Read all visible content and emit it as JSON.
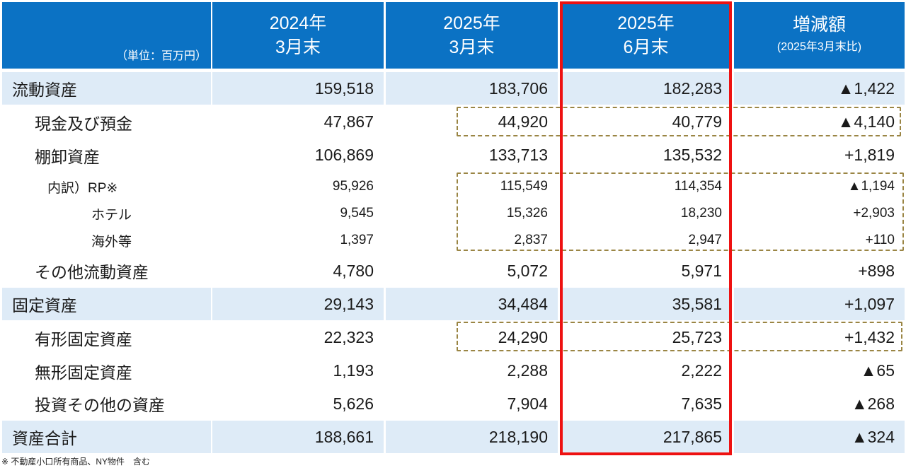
{
  "header": {
    "unit": "（単位：百万円）",
    "columns": [
      {
        "line1": "2024年",
        "line2": "3月末"
      },
      {
        "line1": "2025年",
        "line2": "3月末"
      },
      {
        "line1": "2025年",
        "line2": "6月末"
      }
    ],
    "change": {
      "line1": "増減額",
      "line2": "(2025年3月末比)"
    }
  },
  "rows": [
    {
      "label": "流動資産",
      "values": [
        "159,518",
        "183,706",
        "182,283",
        "▲1,422"
      ]
    },
    {
      "label": "現金及び預金",
      "values": [
        "47,867",
        "44,920",
        "40,779",
        "▲4,140"
      ]
    },
    {
      "label": "棚卸資産",
      "values": [
        "106,869",
        "133,713",
        "135,532",
        "+1,819"
      ]
    },
    {
      "label": "内訳）RP※",
      "values": [
        "95,926",
        "115,549",
        "114,354",
        "▲1,194"
      ]
    },
    {
      "label": "ホテル",
      "values": [
        "9,545",
        "15,326",
        "18,230",
        "+2,903"
      ]
    },
    {
      "label": "海外等",
      "values": [
        "1,397",
        "2,837",
        "2,947",
        "+110"
      ]
    },
    {
      "label": "その他流動資産",
      "values": [
        "4,780",
        "5,072",
        "5,971",
        "+898"
      ]
    },
    {
      "label": "固定資産",
      "values": [
        "29,143",
        "34,484",
        "35,581",
        "+1,097"
      ]
    },
    {
      "label": "有形固定資産",
      "values": [
        "22,323",
        "24,290",
        "25,723",
        "+1,432"
      ]
    },
    {
      "label": "無形固定資産",
      "values": [
        "1,193",
        "2,288",
        "2,222",
        "▲65"
      ]
    },
    {
      "label": "投資その他の資産",
      "values": [
        "5,626",
        "7,904",
        "7,635",
        "▲268"
      ]
    },
    {
      "label": "資産合計",
      "values": [
        "188,661",
        "218,190",
        "217,865",
        "▲324"
      ]
    }
  ],
  "footnote": "※ 不動産小口所有商品、NY物件　含む",
  "colors": {
    "header": "#0b72c4",
    "shade": "#deebf7",
    "highlight": "#ee1111",
    "dashed": "#9a8544"
  }
}
